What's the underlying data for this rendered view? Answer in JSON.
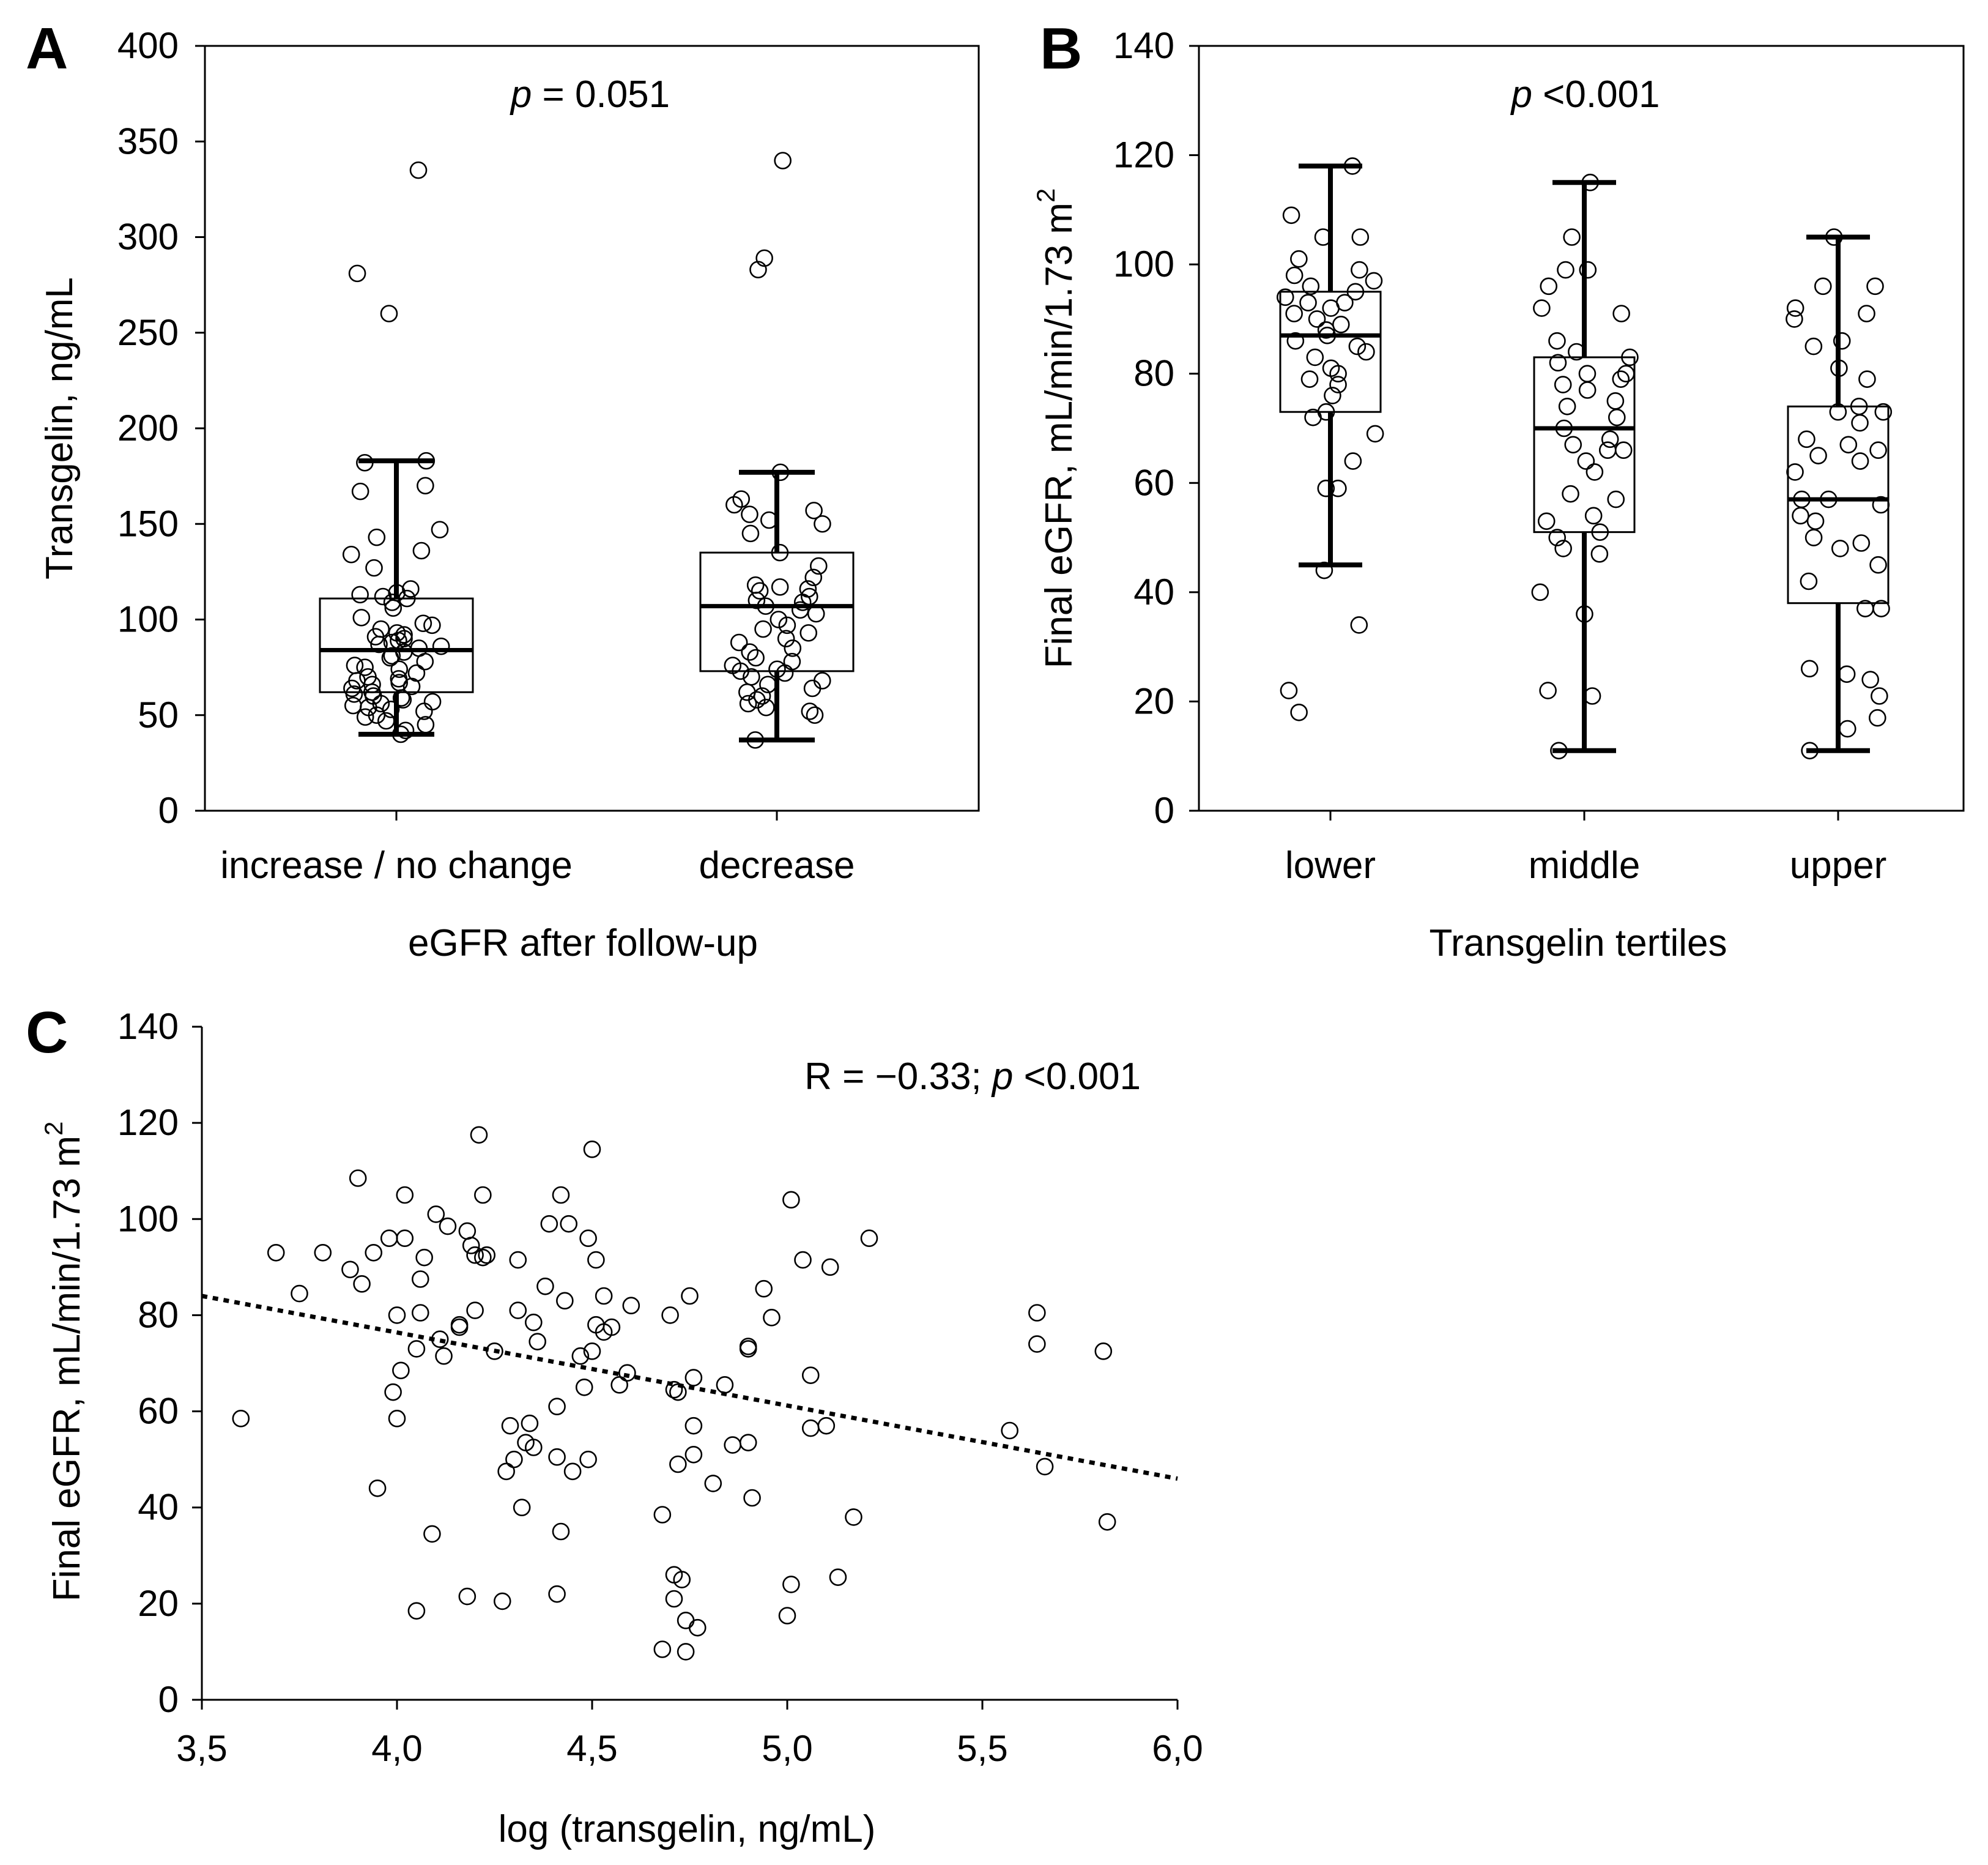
{
  "chart_data": [
    {
      "panel": "A",
      "type": "box",
      "title": "",
      "annotation": {
        "italic": "p",
        "rest": " = 0.051"
      },
      "xlabel": "eGFR after follow-up",
      "ylabel": "Transgelin, ng/mL",
      "ylim": [
        0,
        400
      ],
      "yticks": [
        0,
        50,
        100,
        150,
        200,
        250,
        300,
        350,
        400
      ],
      "categories": [
        "increase / no change",
        "decrease"
      ],
      "boxes": [
        {
          "q1": 62,
          "median": 84,
          "q3": 111,
          "whisker_low": 40,
          "whisker_high": 183
        },
        {
          "q1": 73,
          "median": 107,
          "q3": 135,
          "whisker_low": 37,
          "whisker_high": 177
        }
      ],
      "points": [
        [
          335,
          281,
          260,
          183,
          182,
          170,
          167,
          147,
          143,
          136,
          134,
          127,
          116,
          114,
          113,
          112,
          111,
          109,
          106,
          101,
          98,
          97,
          95,
          93,
          92,
          91,
          90,
          89,
          88,
          87,
          86,
          85,
          83,
          81,
          80,
          78,
          76,
          75,
          74,
          72,
          70,
          69,
          68,
          67,
          66,
          65,
          64,
          62,
          61,
          60,
          59,
          58,
          57,
          56,
          55,
          54,
          53,
          52,
          50,
          49,
          47,
          45,
          42,
          40
        ],
        [
          340,
          289,
          283,
          177,
          163,
          160,
          157,
          155,
          152,
          150,
          145,
          135,
          128,
          122,
          118,
          117,
          116,
          115,
          112,
          110,
          109,
          107,
          105,
          103,
          100,
          97,
          95,
          93,
          90,
          88,
          85,
          83,
          80,
          78,
          76,
          74,
          73,
          72,
          70,
          68,
          66,
          64,
          62,
          60,
          58,
          56,
          54,
          52,
          50,
          37
        ]
      ]
    },
    {
      "panel": "B",
      "type": "box",
      "title": "",
      "annotation": {
        "italic": "p",
        "rest": " <0.001"
      },
      "xlabel": "Transgelin tertiles",
      "ylabel": "Final eGFR, mL/min/1.73 m",
      "ylabel_sup": "2",
      "ylim": [
        0,
        140
      ],
      "yticks": [
        0,
        20,
        40,
        60,
        80,
        100,
        120,
        140
      ],
      "categories": [
        "lower",
        "middle",
        "upper"
      ],
      "boxes": [
        {
          "q1": 73,
          "median": 87,
          "q3": 95,
          "whisker_low": 45,
          "whisker_high": 118
        },
        {
          "q1": 51,
          "median": 70,
          "q3": 83,
          "whisker_low": 11,
          "whisker_high": 115
        },
        {
          "q1": 38,
          "median": 57,
          "q3": 74,
          "whisker_low": 11,
          "whisker_high": 105
        }
      ],
      "points": [
        [
          118,
          109,
          105,
          105,
          101,
          99,
          98,
          97,
          96,
          95,
          94,
          93,
          93,
          92,
          91,
          90,
          89,
          88,
          87,
          86,
          85,
          84,
          83,
          81,
          80,
          79,
          78,
          76,
          73,
          72,
          69,
          64,
          59,
          59,
          44,
          34,
          22,
          18
        ],
        [
          115,
          105,
          99,
          99,
          96,
          92,
          91,
          86,
          84,
          83,
          82,
          80,
          80,
          79,
          78,
          77,
          75,
          74,
          72,
          70,
          68,
          67,
          66,
          66,
          64,
          62,
          58,
          57,
          54,
          53,
          51,
          50,
          48,
          47,
          40,
          36,
          22,
          21,
          11
        ],
        [
          105,
          96,
          96,
          92,
          91,
          90,
          86,
          85,
          81,
          79,
          74,
          73,
          73,
          71,
          68,
          67,
          66,
          65,
          64,
          62,
          57,
          57,
          56,
          54,
          53,
          50,
          49,
          48,
          45,
          42,
          37,
          37,
          26,
          25,
          24,
          21,
          17,
          15,
          11
        ]
      ]
    },
    {
      "panel": "C",
      "type": "scatter",
      "title": "",
      "annotation": {
        "lead": "R = −0.33; ",
        "italic": "p",
        "rest": " <0.001"
      },
      "xlabel": "log (transgelin, ng/mL)",
      "ylabel": "Final eGFR, mL/min/1.73 m",
      "ylabel_sup": "2",
      "xlim": [
        3.5,
        6.0
      ],
      "ylim": [
        0,
        140
      ],
      "xticks": [
        "3,5",
        "4,0",
        "4,5",
        "5,0",
        "5,5",
        "6,0"
      ],
      "yticks": [
        0,
        20,
        40,
        60,
        80,
        100,
        120,
        140
      ],
      "trend": {
        "x": [
          3.5,
          6.0
        ],
        "y": [
          84,
          46
        ],
        "style": "dotted"
      },
      "points": [
        [
          3.6,
          58.5
        ],
        [
          3.69,
          93
        ],
        [
          3.75,
          84.5
        ],
        [
          3.81,
          93
        ],
        [
          3.88,
          89.5
        ],
        [
          3.9,
          108.5
        ],
        [
          3.91,
          86.5
        ],
        [
          3.94,
          93
        ],
        [
          3.95,
          44
        ],
        [
          3.98,
          96
        ],
        [
          3.99,
          64
        ],
        [
          4.0,
          58.5
        ],
        [
          4.0,
          80
        ],
        [
          4.01,
          68.5
        ],
        [
          4.02,
          105
        ],
        [
          4.02,
          96
        ],
        [
          4.05,
          73
        ],
        [
          4.05,
          18.5
        ],
        [
          4.06,
          87.5
        ],
        [
          4.06,
          80.5
        ],
        [
          4.07,
          92
        ],
        [
          4.09,
          34.5
        ],
        [
          4.1,
          101
        ],
        [
          4.11,
          75
        ],
        [
          4.12,
          71.5
        ],
        [
          4.13,
          98.5
        ],
        [
          4.16,
          78
        ],
        [
          4.16,
          77.5
        ],
        [
          4.18,
          21.5
        ],
        [
          4.18,
          97.5
        ],
        [
          4.19,
          94.5
        ],
        [
          4.2,
          92.5
        ],
        [
          4.2,
          81
        ],
        [
          4.21,
          117.5
        ],
        [
          4.22,
          92
        ],
        [
          4.22,
          105
        ],
        [
          4.23,
          92.5
        ],
        [
          4.25,
          72.5
        ],
        [
          4.27,
          20.5
        ],
        [
          4.28,
          47.5
        ],
        [
          4.29,
          57
        ],
        [
          4.3,
          50
        ],
        [
          4.31,
          81
        ],
        [
          4.31,
          91.5
        ],
        [
          4.32,
          40
        ],
        [
          4.33,
          53.5
        ],
        [
          4.34,
          57.5
        ],
        [
          4.35,
          52.5
        ],
        [
          4.35,
          78.5
        ],
        [
          4.36,
          74.5
        ],
        [
          4.38,
          86
        ],
        [
          4.39,
          99
        ],
        [
          4.41,
          61
        ],
        [
          4.41,
          50.5
        ],
        [
          4.41,
          22
        ],
        [
          4.42,
          35
        ],
        [
          4.42,
          105
        ],
        [
          4.43,
          83
        ],
        [
          4.44,
          99
        ],
        [
          4.45,
          47.5
        ],
        [
          4.47,
          71.5
        ],
        [
          4.48,
          65
        ],
        [
          4.49,
          50
        ],
        [
          4.49,
          96
        ],
        [
          4.5,
          72.5
        ],
        [
          4.5,
          114.5
        ],
        [
          4.51,
          91.5
        ],
        [
          4.51,
          78
        ],
        [
          4.53,
          84
        ],
        [
          4.53,
          76.5
        ],
        [
          4.55,
          77.5
        ],
        [
          4.57,
          65.5
        ],
        [
          4.59,
          68
        ],
        [
          4.6,
          82
        ],
        [
          4.68,
          38.5
        ],
        [
          4.68,
          10.5
        ],
        [
          4.7,
          80
        ],
        [
          4.71,
          64.5
        ],
        [
          4.71,
          26
        ],
        [
          4.71,
          21
        ],
        [
          4.72,
          49
        ],
        [
          4.72,
          64
        ],
        [
          4.73,
          25
        ],
        [
          4.74,
          16.5
        ],
        [
          4.74,
          10
        ],
        [
          4.75,
          84
        ],
        [
          4.76,
          57
        ],
        [
          4.76,
          67
        ],
        [
          4.76,
          51
        ],
        [
          4.77,
          15
        ],
        [
          4.81,
          45
        ],
        [
          4.84,
          65.5
        ],
        [
          4.86,
          53
        ],
        [
          4.9,
          73
        ],
        [
          4.9,
          73.5
        ],
        [
          4.9,
          53.5
        ],
        [
          4.91,
          42
        ],
        [
          4.94,
          85.5
        ],
        [
          4.96,
          79.5
        ],
        [
          5.0,
          17.5
        ],
        [
          5.01,
          104
        ],
        [
          5.01,
          24
        ],
        [
          5.04,
          91.5
        ],
        [
          5.06,
          67.5
        ],
        [
          5.06,
          56.5
        ],
        [
          5.1,
          57
        ],
        [
          5.11,
          90
        ],
        [
          5.13,
          25.5
        ],
        [
          5.17,
          38
        ],
        [
          5.21,
          96
        ],
        [
          5.57,
          56
        ],
        [
          5.64,
          80.5
        ],
        [
          5.64,
          74
        ],
        [
          5.66,
          48.5
        ],
        [
          5.81,
          72.5
        ],
        [
          5.82,
          37
        ]
      ]
    }
  ]
}
